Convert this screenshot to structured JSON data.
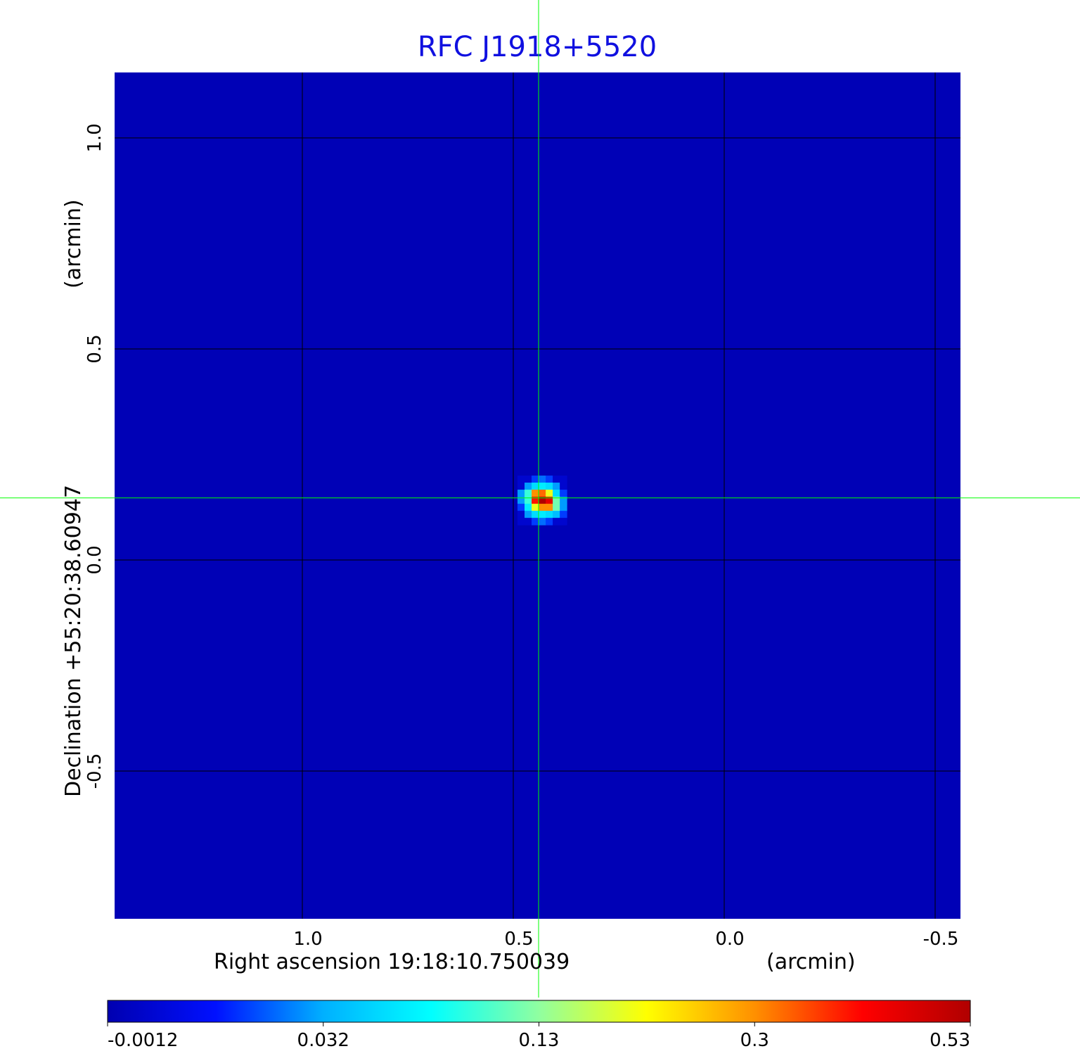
{
  "chart_data": {
    "type": "heatmap",
    "title": "RFC J1918+5520",
    "xlabel": "Right ascension  19:18:10.750039",
    "xunit": "(arcmin)",
    "ylabel": "Declination  +55:20:38.60947",
    "yunit": "(arcmin)",
    "xlim": [
      1.44,
      -0.56
    ],
    "ylim": [
      -0.85,
      1.16
    ],
    "xticks": [
      "1.0",
      "0.5",
      "0.0",
      "-0.5"
    ],
    "xtick_values": [
      1.0,
      0.5,
      0.0,
      -0.5
    ],
    "yticks": [
      "1.0",
      "0.5",
      "0.0",
      "-0.5"
    ],
    "ytick_values": [
      1.0,
      0.5,
      0.0,
      -0.5
    ],
    "grid": true,
    "crosshair": {
      "x": 0.44,
      "y": 0.147,
      "color": "#00ff00"
    },
    "background_value": 0.0,
    "source": {
      "pixel_arcmin": 0.0167,
      "x_start": 0.49,
      "y_start": 0.2,
      "values": [
        [
          0.005,
          0.005,
          0.02,
          0.025,
          0.02,
          0.005,
          0.005
        ],
        [
          0.005,
          0.03,
          0.06,
          0.07,
          0.06,
          0.03,
          0.005
        ],
        [
          0.03,
          0.1,
          0.3,
          0.33,
          0.2,
          0.06,
          0.02
        ],
        [
          0.03,
          0.1,
          0.4,
          0.53,
          0.45,
          0.12,
          0.03
        ],
        [
          0.02,
          0.07,
          0.2,
          0.3,
          0.3,
          0.12,
          0.03
        ],
        [
          0.005,
          0.03,
          0.06,
          0.07,
          0.06,
          0.04,
          0.02
        ],
        [
          0.005,
          0.005,
          0.02,
          0.025,
          0.02,
          0.005,
          0.005
        ]
      ]
    },
    "colorbar": {
      "ticks": [
        "-0.0012",
        "0.032",
        "0.13",
        "0.3",
        "0.53"
      ],
      "tick_values": [
        -0.0012,
        0.032,
        0.13,
        0.3,
        0.53
      ],
      "colors": [
        "#0000b0",
        "#0010ff",
        "#00b0ff",
        "#00ffff",
        "#90ffa0",
        "#ffff00",
        "#ff9000",
        "#ff0000",
        "#b00000"
      ]
    }
  }
}
